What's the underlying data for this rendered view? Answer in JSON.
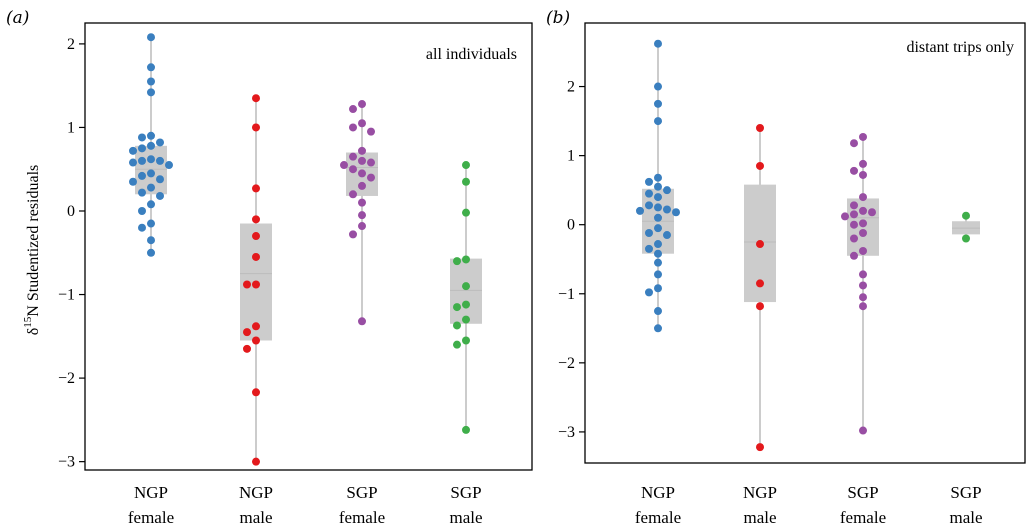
{
  "figure": {
    "ylabel": {
      "delta": "δ",
      "sup": "15",
      "rest": "N Studentized residuals"
    },
    "categories": [
      [
        "NGP",
        "female"
      ],
      [
        "NGP",
        "male"
      ],
      [
        "SGP",
        "female"
      ],
      [
        "SGP",
        "male"
      ]
    ],
    "colors": {
      "NGP female": "#3a7fbf",
      "NGP male": "#e3191c",
      "SGP female": "#984ea3",
      "SGP male": "#3fae4a",
      "box": "#cccccc",
      "whisker": "#cccccc"
    }
  },
  "chart_data": [
    {
      "type": "box",
      "panel": "(a)",
      "annotation": "all individuals",
      "ylim": [
        -3.1,
        2.25
      ],
      "yticks": [
        -3,
        -2,
        -1,
        0,
        1,
        2
      ],
      "ytick_labels": [
        "−3",
        "−2",
        "−1",
        "0",
        "1",
        "2"
      ],
      "groups": [
        {
          "name": "NGP female",
          "box": {
            "q1": 0.2,
            "median": 0.5,
            "q3": 0.78,
            "whisker_low": -0.5,
            "whisker_high": 2.08
          },
          "points": [
            2.08,
            1.72,
            1.55,
            1.42,
            0.9,
            0.88,
            0.82,
            0.78,
            0.75,
            0.72,
            0.62,
            0.6,
            0.6,
            0.58,
            0.55,
            0.45,
            0.42,
            0.38,
            0.35,
            0.28,
            0.22,
            0.18,
            0.08,
            0.0,
            -0.15,
            -0.2,
            -0.35,
            -0.5
          ]
        },
        {
          "name": "NGP male",
          "box": {
            "q1": -1.55,
            "median": -0.75,
            "q3": -0.15,
            "whisker_low": -3.0,
            "whisker_high": 1.35
          },
          "points": [
            1.35,
            1.0,
            0.27,
            -0.1,
            -0.3,
            -0.55,
            -0.88,
            -0.88,
            -1.38,
            -1.45,
            -1.55,
            -1.65,
            -2.17,
            -3.0
          ]
        },
        {
          "name": "SGP female",
          "box": {
            "q1": 0.18,
            "median": 0.52,
            "q3": 0.7,
            "whisker_low": -1.32,
            "whisker_high": 1.28
          },
          "points": [
            1.28,
            1.22,
            1.05,
            1.0,
            0.95,
            0.72,
            0.65,
            0.6,
            0.58,
            0.55,
            0.5,
            0.45,
            0.4,
            0.3,
            0.2,
            0.1,
            -0.05,
            -0.18,
            -0.28,
            -1.32
          ]
        },
        {
          "name": "SGP male",
          "box": {
            "q1": -1.35,
            "median": -0.95,
            "q3": -0.57,
            "whisker_low": -2.62,
            "whisker_high": 0.55
          },
          "points": [
            0.55,
            0.35,
            -0.02,
            -0.58,
            -0.6,
            -0.9,
            -1.12,
            -1.15,
            -1.3,
            -1.37,
            -1.55,
            -1.6,
            -2.62
          ]
        }
      ]
    },
    {
      "type": "box",
      "panel": "(b)",
      "annotation": "distant trips only",
      "ylim": [
        -3.45,
        2.92
      ],
      "yticks": [
        -3,
        -2,
        -1,
        0,
        1,
        2
      ],
      "ytick_labels": [
        "−3",
        "−2",
        "−1",
        "0",
        "1",
        "2"
      ],
      "groups": [
        {
          "name": "NGP female",
          "box": {
            "q1": -0.42,
            "median": 0.05,
            "q3": 0.52,
            "whisker_low": -1.5,
            "whisker_high": 2.62
          },
          "points": [
            2.62,
            2.0,
            1.75,
            1.5,
            0.68,
            0.62,
            0.55,
            0.5,
            0.45,
            0.4,
            0.28,
            0.25,
            0.22,
            0.2,
            0.18,
            0.1,
            -0.05,
            -0.12,
            -0.15,
            -0.28,
            -0.35,
            -0.42,
            -0.55,
            -0.72,
            -0.92,
            -0.98,
            -1.25,
            -1.5
          ]
        },
        {
          "name": "NGP male",
          "box": {
            "q1": -1.12,
            "median": -0.25,
            "q3": 0.58,
            "whisker_low": -3.22,
            "whisker_high": 1.4
          },
          "points": [
            1.4,
            0.85,
            -0.28,
            -0.85,
            -1.18,
            -3.22
          ]
        },
        {
          "name": "SGP female",
          "box": {
            "q1": -0.45,
            "median": 0.1,
            "q3": 0.38,
            "whisker_low": -2.98,
            "whisker_high": 1.27
          },
          "points": [
            1.27,
            1.18,
            0.88,
            0.78,
            0.72,
            0.4,
            0.28,
            0.2,
            0.18,
            0.15,
            0.12,
            0.02,
            0.0,
            -0.12,
            -0.2,
            -0.38,
            -0.45,
            -0.72,
            -0.88,
            -1.05,
            -1.18,
            -2.98
          ]
        },
        {
          "name": "SGP male",
          "box": {
            "q1": -0.14,
            "median": -0.05,
            "q3": 0.05,
            "whisker_low": -0.2,
            "whisker_high": 0.13
          },
          "points": [
            0.13,
            -0.2
          ]
        }
      ]
    }
  ]
}
